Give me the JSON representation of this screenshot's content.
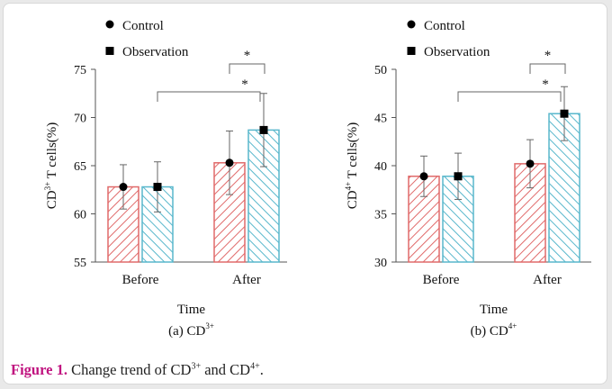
{
  "chart_data": [
    {
      "type": "bar",
      "subtitle_prefix": "(a) CD",
      "subtitle_sup": "3+",
      "xlabel": "Time",
      "ylabel": "CD3+ T cells(%)",
      "ylabel_base": "CD",
      "ylabel_sup": "3+",
      "ylabel_rest": " T cells(%)",
      "ylim": [
        55,
        75
      ],
      "yticks": [
        55,
        60,
        65,
        70,
        75
      ],
      "categories": [
        "Before",
        "After"
      ],
      "series": [
        {
          "name": "Control",
          "values": [
            62.8,
            65.3
          ],
          "errors": [
            2.3,
            3.3
          ]
        },
        {
          "name": "Observation",
          "values": [
            62.8,
            68.7
          ],
          "errors": [
            2.6,
            3.8
          ]
        }
      ],
      "significance": [
        "*",
        "*"
      ]
    },
    {
      "type": "bar",
      "subtitle_prefix": "(b) CD",
      "subtitle_sup": "4+",
      "xlabel": "Time",
      "ylabel": "CD4+ T cells(%)",
      "ylabel_base": "CD",
      "ylabel_sup": "4+",
      "ylabel_rest": " T cells(%)",
      "ylim": [
        30,
        50
      ],
      "yticks": [
        30,
        35,
        40,
        45,
        50
      ],
      "categories": [
        "Before",
        "After"
      ],
      "series": [
        {
          "name": "Control",
          "values": [
            38.9,
            40.2
          ],
          "errors": [
            2.1,
            2.5
          ]
        },
        {
          "name": "Observation",
          "values": [
            38.9,
            45.4
          ],
          "errors": [
            2.4,
            2.8
          ]
        }
      ],
      "significance": [
        "*",
        "*"
      ]
    }
  ],
  "caption": {
    "label": "Figure 1.",
    "text_pre": " Change trend of CD",
    "sup1": "3+",
    "text_mid": " and CD",
    "sup2": "4+",
    "text_end": "."
  },
  "colors": {
    "control": "#e06a6a",
    "observation": "#58b7cc",
    "axis": "#555555"
  }
}
